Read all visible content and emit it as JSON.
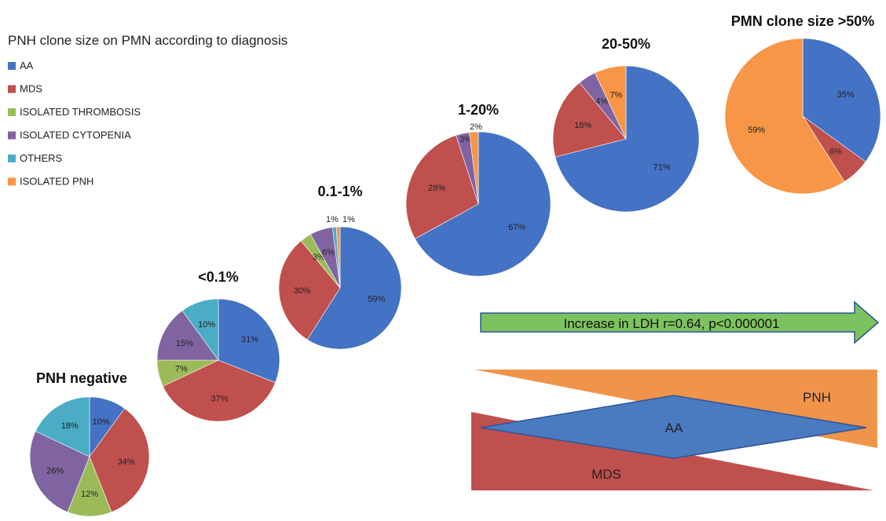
{
  "colors": {
    "AA": "#4472c4",
    "MDS": "#c0504d",
    "ISOLATED THROMBOSIS": "#9bbb59",
    "ISOLATED CYTOPENIA": "#8064a2",
    "OTHERS": "#4bacc6",
    "ISOLATED PNH": "#f79646",
    "arrow": "#7cc35f",
    "pnh_band": "#f0944a",
    "mds_band": "#c0504d",
    "aa_diamond": "#4a7ac0"
  },
  "chart_data": {
    "type": "pie",
    "title": "PNH clone size on PMN according to diagnosis",
    "legend": [
      "AA",
      "MDS",
      "ISOLATED THROMBOSIS",
      "ISOLATED CYTOPENIA",
      "OTHERS",
      "ISOLATED PNH"
    ],
    "pies": [
      {
        "title": "PNH negative",
        "slices": [
          {
            "category": "AA",
            "value": 10,
            "label": "10%"
          },
          {
            "category": "MDS",
            "value": 34,
            "label": "34%"
          },
          {
            "category": "ISOLATED THROMBOSIS",
            "value": 12,
            "label": "12%"
          },
          {
            "category": "ISOLATED CYTOPENIA",
            "value": 26,
            "label": "26%"
          },
          {
            "category": "OTHERS",
            "value": 18,
            "label": "18%"
          }
        ]
      },
      {
        "title": "<0.1%",
        "slices": [
          {
            "category": "AA",
            "value": 31,
            "label": "31%"
          },
          {
            "category": "MDS",
            "value": 37,
            "label": "37%"
          },
          {
            "category": "ISOLATED THROMBOSIS",
            "value": 7,
            "label": "7%"
          },
          {
            "category": "ISOLATED CYTOPENIA",
            "value": 15,
            "label": "15%"
          },
          {
            "category": "OTHERS",
            "value": 10,
            "label": "10%"
          }
        ]
      },
      {
        "title": "0.1-1%",
        "slices": [
          {
            "category": "AA",
            "value": 59,
            "label": "59%"
          },
          {
            "category": "MDS",
            "value": 30,
            "label": "30%"
          },
          {
            "category": "ISOLATED THROMBOSIS",
            "value": 3,
            "label": "3%"
          },
          {
            "category": "ISOLATED CYTOPENIA",
            "value": 6,
            "label": "6%"
          },
          {
            "category": "OTHERS",
            "value": 1,
            "label": "1%"
          },
          {
            "category": "ISOLATED PNH",
            "value": 1,
            "label": "1%"
          }
        ]
      },
      {
        "title": "1-20%",
        "slices": [
          {
            "category": "AA",
            "value": 67,
            "label": "67%"
          },
          {
            "category": "MDS",
            "value": 28,
            "label": "28%"
          },
          {
            "category": "ISOLATED CYTOPENIA",
            "value": 3,
            "label": "3%"
          },
          {
            "category": "ISOLATED PNH",
            "value": 2,
            "label": "2%"
          }
        ]
      },
      {
        "title": "20-50%",
        "slices": [
          {
            "category": "AA",
            "value": 71,
            "label": "71%"
          },
          {
            "category": "MDS",
            "value": 18,
            "label": "18%"
          },
          {
            "category": "ISOLATED CYTOPENIA",
            "value": 4,
            "label": "4%"
          },
          {
            "category": "ISOLATED PNH",
            "value": 7,
            "label": "7%"
          }
        ]
      },
      {
        "title": "PMN clone size >50%",
        "slices": [
          {
            "category": "AA",
            "value": 35,
            "label": "35%"
          },
          {
            "category": "MDS",
            "value": 6,
            "label": "6%"
          },
          {
            "category": "ISOLATED PNH",
            "value": 59,
            "label": "59%"
          }
        ]
      }
    ]
  },
  "annotations": {
    "arrow_text": "Increase in LDH r=0.64, p<0.000001",
    "pnh_label": "PNH",
    "aa_label": "AA",
    "mds_label": "MDS"
  }
}
